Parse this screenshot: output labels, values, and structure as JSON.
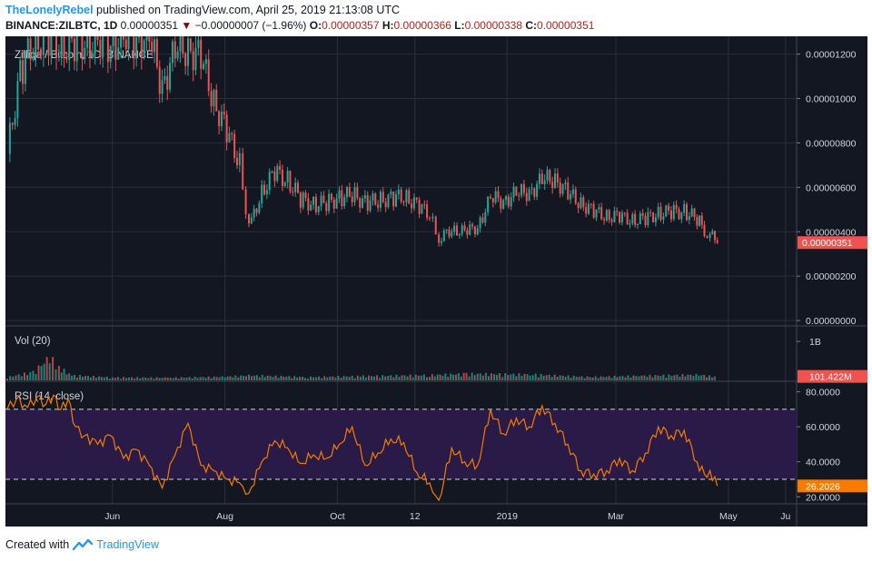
{
  "header": {
    "author": "TheLonelyRebel",
    "published": "published on TradingView.com, April 25, 2019 21:13:08 UTC",
    "symbol": "BINANCE:ZILBTC, 1D",
    "last": "0.00000351",
    "change_arrow": "▼",
    "change": "−0.00000007 (−1.96%)",
    "o_label": "O:",
    "o": "0.00000357",
    "h_label": "H:",
    "h": "0.00000366",
    "l_label": "L:",
    "l": "0.00000338",
    "c_label": "C:",
    "c": "0.00000351"
  },
  "footer": {
    "created_with": "Created with",
    "brand": "TradingView"
  },
  "colors": {
    "up": "#26a69a",
    "down": "#ef5350",
    "rsi": "#f57c00",
    "rsi_band": "#2a1a48",
    "bg": "#131722",
    "grid": "#2a2e39",
    "axis_text": "#d1d4dc"
  },
  "chart_data": [
    {
      "type": "candlestick",
      "title": "Zilliqa / Bitcoin, 1D, BINANCE",
      "price_ticks": [
        "0.00001200",
        "0.00001000",
        "0.00000800",
        "0.00000600",
        "0.00000400",
        "0.00000200",
        "0.00000000"
      ],
      "price_tick_values": [
        1.2e-05,
        1e-05,
        8e-06,
        6e-06,
        4e-06,
        2e-06,
        0
      ],
      "ylim": [
        -2e-07,
        1.28e-05
      ],
      "last_price_label": "0.00000351",
      "last_price": 3.51e-06,
      "x_labels": [
        "Jun",
        "Aug",
        "Oct",
        "12",
        "2019",
        "Mar",
        "May",
        "Ju"
      ],
      "x_label_dates": [
        "2018-06-01",
        "2018-08-01",
        "2018-10-01",
        "2018-11-12",
        "2019-01-01",
        "2019-03-01",
        "2019-05-01",
        "2019-06-01"
      ],
      "x_range": [
        "2018-04-04",
        "2019-06-07"
      ],
      "closes": [
        {
          "date": "2018-04-05",
          "close": 7.5e-06
        },
        {
          "date": "2018-04-12",
          "close": 1.12e-05
        },
        {
          "date": "2018-04-19",
          "close": 1.25e-05
        },
        {
          "date": "2018-04-26",
          "close": 1.28e-05
        },
        {
          "date": "2018-05-03",
          "close": 1.24e-05
        },
        {
          "date": "2018-05-10",
          "close": 1.23e-05
        },
        {
          "date": "2018-05-17",
          "close": 1.26e-05
        },
        {
          "date": "2018-05-24",
          "close": 1.24e-05
        },
        {
          "date": "2018-05-31",
          "close": 1.25e-05
        },
        {
          "date": "2018-06-07",
          "close": 1.26e-05
        },
        {
          "date": "2018-06-14",
          "close": 1.27e-05
        },
        {
          "date": "2018-06-21",
          "close": 1.27e-05
        },
        {
          "date": "2018-06-28",
          "close": 1.06e-05
        },
        {
          "date": "2018-07-05",
          "close": 1.21e-05
        },
        {
          "date": "2018-07-12",
          "close": 1.23e-05
        },
        {
          "date": "2018-07-19",
          "close": 1.18e-05
        },
        {
          "date": "2018-07-26",
          "close": 9.9e-06
        },
        {
          "date": "2018-08-02",
          "close": 8.5e-06
        },
        {
          "date": "2018-08-09",
          "close": 7.1e-06
        },
        {
          "date": "2018-08-14",
          "close": 4.1e-06
        },
        {
          "date": "2018-08-21",
          "close": 5.8e-06
        },
        {
          "date": "2018-08-28",
          "close": 6.7e-06
        },
        {
          "date": "2018-09-04",
          "close": 6.3e-06
        },
        {
          "date": "2018-09-11",
          "close": 5.5e-06
        },
        {
          "date": "2018-09-18",
          "close": 5.2e-06
        },
        {
          "date": "2018-09-25",
          "close": 5.3e-06
        },
        {
          "date": "2018-10-02",
          "close": 5.5e-06
        },
        {
          "date": "2018-10-09",
          "close": 5.7e-06
        },
        {
          "date": "2018-10-16",
          "close": 5.3e-06
        },
        {
          "date": "2018-10-23",
          "close": 5.4e-06
        },
        {
          "date": "2018-10-30",
          "close": 5.5e-06
        },
        {
          "date": "2018-11-06",
          "close": 5.6e-06
        },
        {
          "date": "2018-11-13",
          "close": 5.2e-06
        },
        {
          "date": "2018-11-20",
          "close": 4.8e-06
        },
        {
          "date": "2018-11-25",
          "close": 3.7e-06
        },
        {
          "date": "2018-12-02",
          "close": 4.1e-06
        },
        {
          "date": "2018-12-09",
          "close": 4e-06
        },
        {
          "date": "2018-12-16",
          "close": 4.2e-06
        },
        {
          "date": "2018-12-23",
          "close": 5.5e-06
        },
        {
          "date": "2018-12-30",
          "close": 5.4e-06
        },
        {
          "date": "2019-01-06",
          "close": 5.7e-06
        },
        {
          "date": "2019-01-13",
          "close": 5.8e-06
        },
        {
          "date": "2019-01-20",
          "close": 6.3e-06
        },
        {
          "date": "2019-01-27",
          "close": 6.4e-06
        },
        {
          "date": "2019-02-03",
          "close": 5.7e-06
        },
        {
          "date": "2019-02-10",
          "close": 5.3e-06
        },
        {
          "date": "2019-02-17",
          "close": 4.9e-06
        },
        {
          "date": "2019-02-24",
          "close": 4.7e-06
        },
        {
          "date": "2019-03-03",
          "close": 4.7e-06
        },
        {
          "date": "2019-03-10",
          "close": 4.5e-06
        },
        {
          "date": "2019-03-17",
          "close": 4.6e-06
        },
        {
          "date": "2019-03-24",
          "close": 4.8e-06
        },
        {
          "date": "2019-03-31",
          "close": 4.9e-06
        },
        {
          "date": "2019-04-07",
          "close": 4.9e-06
        },
        {
          "date": "2019-04-14",
          "close": 4.6e-06
        },
        {
          "date": "2019-04-18",
          "close": 4.1e-06
        },
        {
          "date": "2019-04-21",
          "close": 3.9e-06
        },
        {
          "date": "2019-04-25",
          "close": 3.51e-06
        }
      ]
    },
    {
      "type": "bar",
      "title": "Vol (20)",
      "tick_labels": [
        "1B"
      ],
      "tick_values": [
        1000000000
      ],
      "ylim": [
        0,
        1400000000
      ],
      "last_value_label": "101.422M",
      "last_value": 101422000,
      "values": [
        {
          "date": "2018-04-05",
          "volume": 100000000
        },
        {
          "date": "2018-04-19",
          "volume": 250000000
        },
        {
          "date": "2018-04-28",
          "volume": 700000000
        },
        {
          "date": "2018-05-03",
          "volume": 400000000
        },
        {
          "date": "2018-05-10",
          "volume": 150000000
        },
        {
          "date": "2018-06-01",
          "volume": 90000000
        },
        {
          "date": "2018-07-01",
          "volume": 80000000
        },
        {
          "date": "2018-08-01",
          "volume": 110000000
        },
        {
          "date": "2018-08-14",
          "volume": 150000000
        },
        {
          "date": "2018-09-15",
          "volume": 100000000
        },
        {
          "date": "2018-10-15",
          "volume": 130000000
        },
        {
          "date": "2018-11-20",
          "volume": 160000000
        },
        {
          "date": "2018-12-10",
          "volume": 200000000
        },
        {
          "date": "2019-01-15",
          "volume": 180000000
        },
        {
          "date": "2019-02-15",
          "volume": 100000000
        },
        {
          "date": "2019-03-15",
          "volume": 140000000
        },
        {
          "date": "2019-04-15",
          "volume": 170000000
        },
        {
          "date": "2019-04-25",
          "volume": 101422000
        }
      ]
    },
    {
      "type": "line",
      "title": "RSI (14, close)",
      "tick_labels": [
        "80.0000",
        "60.0000",
        "40.0000",
        "20.0000"
      ],
      "tick_values": [
        80,
        60,
        40,
        20
      ],
      "ylim": [
        16,
        86
      ],
      "band": [
        30,
        70
      ],
      "last_value_label": "26.2026",
      "last_value": 26.2026,
      "values": [
        {
          "date": "2018-04-05",
          "rsi": 70
        },
        {
          "date": "2018-04-10",
          "rsi": 76
        },
        {
          "date": "2018-04-16",
          "rsi": 71
        },
        {
          "date": "2018-04-21",
          "rsi": 77
        },
        {
          "date": "2018-04-26",
          "rsi": 73
        },
        {
          "date": "2018-04-30",
          "rsi": 78
        },
        {
          "date": "2018-05-04",
          "rsi": 70
        },
        {
          "date": "2018-05-08",
          "rsi": 76
        },
        {
          "date": "2018-05-12",
          "rsi": 60
        },
        {
          "date": "2018-05-17",
          "rsi": 55
        },
        {
          "date": "2018-05-24",
          "rsi": 50
        },
        {
          "date": "2018-05-31",
          "rsi": 55
        },
        {
          "date": "2018-06-07",
          "rsi": 42
        },
        {
          "date": "2018-06-14",
          "rsi": 47
        },
        {
          "date": "2018-06-21",
          "rsi": 38
        },
        {
          "date": "2018-06-28",
          "rsi": 25
        },
        {
          "date": "2018-07-05",
          "rsi": 44
        },
        {
          "date": "2018-07-12",
          "rsi": 62
        },
        {
          "date": "2018-07-19",
          "rsi": 38
        },
        {
          "date": "2018-07-26",
          "rsi": 35
        },
        {
          "date": "2018-08-02",
          "rsi": 30
        },
        {
          "date": "2018-08-09",
          "rsi": 28
        },
        {
          "date": "2018-08-14",
          "rsi": 22
        },
        {
          "date": "2018-08-21",
          "rsi": 40
        },
        {
          "date": "2018-08-28",
          "rsi": 52
        },
        {
          "date": "2018-09-04",
          "rsi": 48
        },
        {
          "date": "2018-09-11",
          "rsi": 39
        },
        {
          "date": "2018-09-18",
          "rsi": 44
        },
        {
          "date": "2018-09-25",
          "rsi": 42
        },
        {
          "date": "2018-10-02",
          "rsi": 50
        },
        {
          "date": "2018-10-09",
          "rsi": 60
        },
        {
          "date": "2018-10-16",
          "rsi": 38
        },
        {
          "date": "2018-10-23",
          "rsi": 45
        },
        {
          "date": "2018-10-30",
          "rsi": 53
        },
        {
          "date": "2018-11-06",
          "rsi": 51
        },
        {
          "date": "2018-11-13",
          "rsi": 34
        },
        {
          "date": "2018-11-20",
          "rsi": 28
        },
        {
          "date": "2018-11-25",
          "rsi": 18
        },
        {
          "date": "2018-12-02",
          "rsi": 48
        },
        {
          "date": "2018-12-09",
          "rsi": 40
        },
        {
          "date": "2018-12-16",
          "rsi": 38
        },
        {
          "date": "2018-12-23",
          "rsi": 70
        },
        {
          "date": "2018-12-30",
          "rsi": 56
        },
        {
          "date": "2019-01-06",
          "rsi": 65
        },
        {
          "date": "2019-01-13",
          "rsi": 60
        },
        {
          "date": "2019-01-20",
          "rsi": 72
        },
        {
          "date": "2019-01-27",
          "rsi": 62
        },
        {
          "date": "2019-02-03",
          "rsi": 50
        },
        {
          "date": "2019-02-10",
          "rsi": 35
        },
        {
          "date": "2019-02-17",
          "rsi": 33
        },
        {
          "date": "2019-02-24",
          "rsi": 35
        },
        {
          "date": "2019-03-03",
          "rsi": 42
        },
        {
          "date": "2019-03-10",
          "rsi": 35
        },
        {
          "date": "2019-03-17",
          "rsi": 45
        },
        {
          "date": "2019-03-24",
          "rsi": 60
        },
        {
          "date": "2019-03-31",
          "rsi": 55
        },
        {
          "date": "2019-04-07",
          "rsi": 58
        },
        {
          "date": "2019-04-14",
          "rsi": 40
        },
        {
          "date": "2019-04-18",
          "rsi": 33
        },
        {
          "date": "2019-04-21",
          "rsi": 35
        },
        {
          "date": "2019-04-25",
          "rsi": 26.2026
        }
      ]
    }
  ]
}
